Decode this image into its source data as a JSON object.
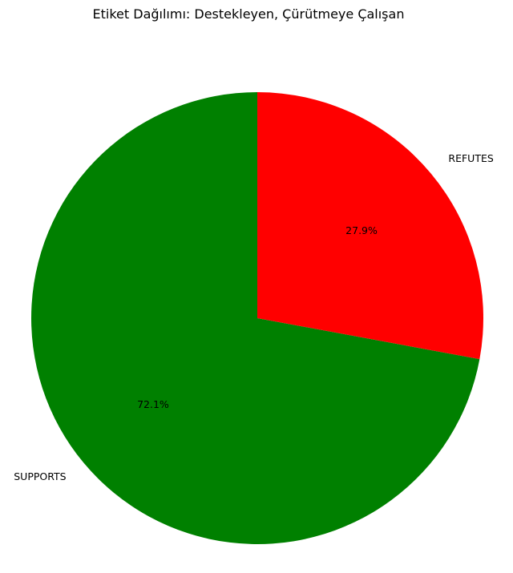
{
  "chart_data": {
    "type": "pie",
    "title": "Etiket Dağılımı: Destekleyen, Çürütmeye Çalışan",
    "start_angle_deg": 90,
    "direction": "counterclockwise",
    "slices": [
      {
        "label": "SUPPORTS",
        "value": 72.1,
        "pct_label": "72.1%",
        "color": "#008000"
      },
      {
        "label": "REFUTES",
        "value": 27.9,
        "pct_label": "27.9%",
        "color": "#ff0000"
      }
    ],
    "legend": "none"
  }
}
